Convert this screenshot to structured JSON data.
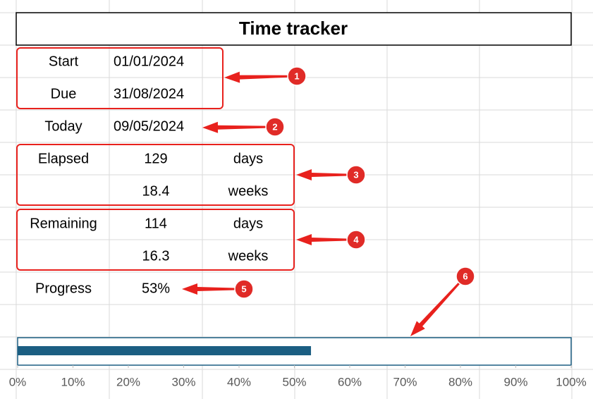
{
  "title": "Time tracker",
  "rows": [
    {
      "label": "Start",
      "value": "01/01/2024"
    },
    {
      "label": "Due",
      "value": "31/08/2024"
    },
    {
      "label": "Today",
      "value": "09/05/2024"
    },
    {
      "label": "Elapsed",
      "value": "129",
      "unit": "days"
    },
    {
      "value": "18.4",
      "unit": "weeks"
    },
    {
      "label": "Remaining",
      "value": "114",
      "unit": "days"
    },
    {
      "value": "16.3",
      "unit": "weeks"
    },
    {
      "label": "Progress",
      "value": "53%"
    }
  ],
  "callouts": [
    "1",
    "2",
    "3",
    "4",
    "5",
    "6"
  ],
  "chart_data": {
    "type": "bar",
    "orientation": "horizontal",
    "values": [
      53
    ],
    "color": "#1b5e82",
    "xlim": [
      0,
      100
    ],
    "xticks": [
      {
        "value": 0,
        "label": "0%"
      },
      {
        "value": 10,
        "label": "10%"
      },
      {
        "value": 20,
        "label": "20%"
      },
      {
        "value": 30,
        "label": "30%"
      },
      {
        "value": 40,
        "label": "40%"
      },
      {
        "value": 50,
        "label": "50%"
      },
      {
        "value": 60,
        "label": "60%"
      },
      {
        "value": 70,
        "label": "70%"
      },
      {
        "value": 80,
        "label": "80%"
      },
      {
        "value": 90,
        "label": "90%"
      },
      {
        "value": 100,
        "label": "100%"
      }
    ]
  }
}
